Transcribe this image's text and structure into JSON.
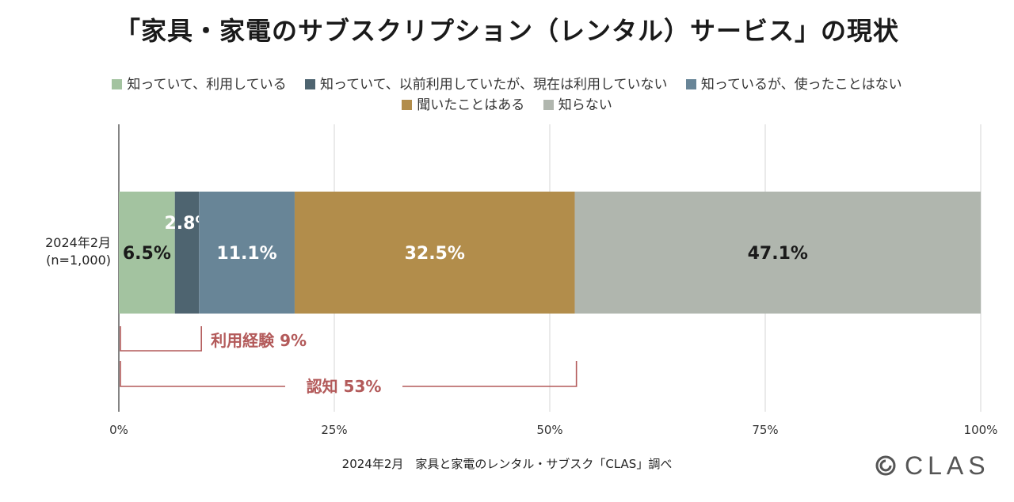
{
  "title": "「家具・家電のサブスクリプション（レンタル）サービス」の現状",
  "chart_data": {
    "type": "bar",
    "orientation": "horizontal-stacked",
    "categories": [
      "2024年2月|(n=1,000)"
    ],
    "series": [
      {
        "name": "知っていて、利用している",
        "values": [
          6.5
        ],
        "label": "6.5%",
        "color": "#a3c3a0",
        "label_color": "#1a1a1a"
      },
      {
        "name": "知っていて、以前利用していたが、現在は利用していない",
        "values": [
          2.8
        ],
        "label": "2.8%",
        "color": "#4e6470",
        "label_color": "#ffffff"
      },
      {
        "name": "知っているが、使ったことはない",
        "values": [
          11.1
        ],
        "label": "11.1%",
        "color": "#688597",
        "label_color": "#ffffff"
      },
      {
        "name": "聞いたことはある",
        "values": [
          32.5
        ],
        "label": "32.5%",
        "color": "#b28d4b",
        "label_color": "#ffffff"
      },
      {
        "name": "知らない",
        "values": [
          47.1
        ],
        "label": "47.1%",
        "color": "#b0b6ae",
        "label_color": "#1a1a1a"
      }
    ],
    "xlim": [
      0,
      100
    ],
    "xticks": [
      0,
      25,
      50,
      75,
      100
    ],
    "xtick_labels": [
      "0%",
      "25%",
      "50%",
      "75%",
      "100%"
    ],
    "grid": true,
    "legend_position": "top",
    "annotations": [
      {
        "text": "利用経験 9%",
        "from": 0,
        "to": 9.3
      },
      {
        "text": "認知 53%",
        "from": 0,
        "to": 53
      }
    ],
    "annotation_color": "#b35a5a"
  },
  "footnote": "2024年2月　家具と家電のレンタル・サブスク「CLAS」調べ",
  "logo": {
    "text": "CLAS",
    "icon": "clas-logo-icon"
  }
}
